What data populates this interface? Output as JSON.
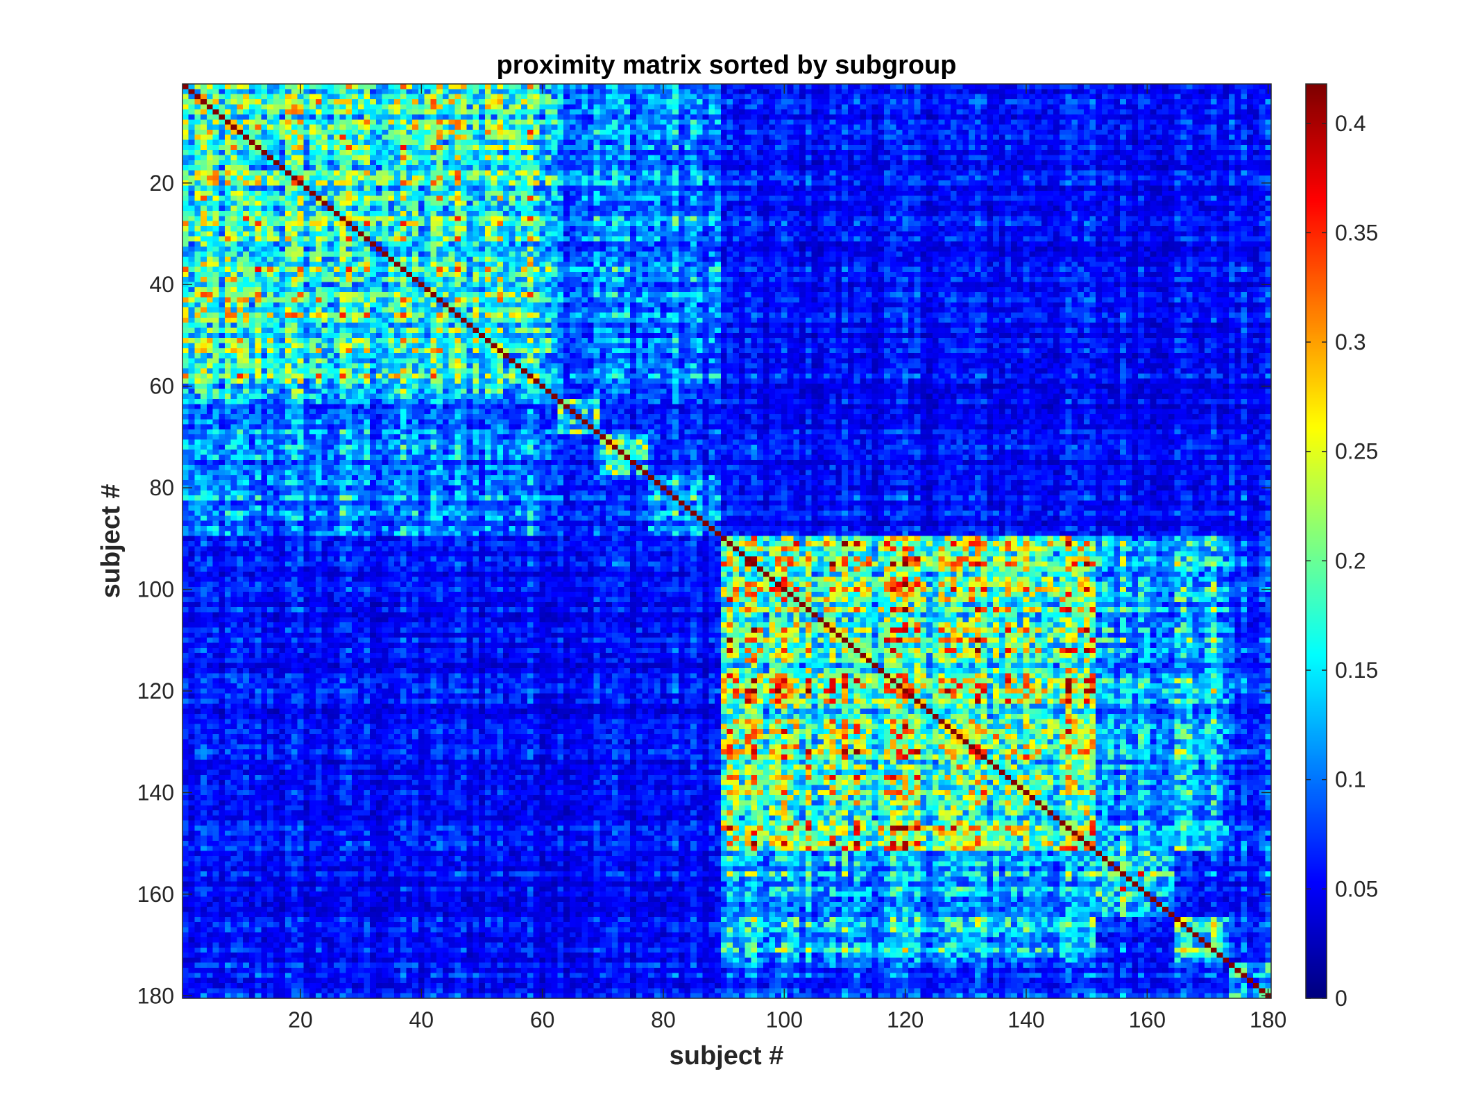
{
  "chart_data": {
    "type": "heatmap",
    "title": "proximity matrix sorted by subgroup",
    "xlabel": "subject #",
    "ylabel": "subject #",
    "n": 180,
    "xlim": [
      0.5,
      180.5
    ],
    "ylim": [
      0.5,
      180.5
    ],
    "y_reversed": true,
    "xticks": [
      20,
      40,
      60,
      80,
      100,
      120,
      140,
      160,
      180
    ],
    "yticks": [
      20,
      40,
      60,
      80,
      100,
      120,
      140,
      160,
      180
    ],
    "colormap": "jet",
    "clim": [
      0,
      0.418
    ],
    "colorbar_ticks": [
      0,
      0.05,
      0.1,
      0.15,
      0.2,
      0.25,
      0.3,
      0.35,
      0.4
    ],
    "colorbar_tick_labels": [
      "0",
      "0.05",
      "0.1",
      "0.15",
      "0.2",
      "0.25",
      "0.3",
      "0.35",
      "0.4"
    ],
    "diagonal_value": 0.418,
    "background_value": 0.07,
    "blocks": [
      {
        "start": 1,
        "end": 62,
        "mean": 0.17
      },
      {
        "start": 63,
        "end": 69,
        "mean": 0.2
      },
      {
        "start": 70,
        "end": 77,
        "mean": 0.17
      },
      {
        "start": 78,
        "end": 89,
        "mean": 0.11
      },
      {
        "start": 90,
        "end": 151,
        "mean": 0.2
      },
      {
        "start": 152,
        "end": 164,
        "mean": 0.2
      },
      {
        "start": 165,
        "end": 173,
        "mean": 0.16
      },
      {
        "start": 174,
        "end": 180,
        "mean": 0.13
      }
    ],
    "off_block_regions": [
      {
        "rows": [
          1,
          62
        ],
        "cols": [
          63,
          89
        ],
        "mean": 0.1
      },
      {
        "rows": [
          63,
          89
        ],
        "cols": [
          1,
          62
        ],
        "mean": 0.1
      },
      {
        "rows": [
          1,
          89
        ],
        "cols": [
          90,
          180
        ],
        "mean": 0.055
      },
      {
        "rows": [
          90,
          180
        ],
        "cols": [
          1,
          89
        ],
        "mean": 0.055
      },
      {
        "rows": [
          90,
          151
        ],
        "cols": [
          152,
          173
        ],
        "mean": 0.13
      },
      {
        "rows": [
          152,
          173
        ],
        "cols": [
          90,
          151
        ],
        "mean": 0.13
      }
    ]
  }
}
